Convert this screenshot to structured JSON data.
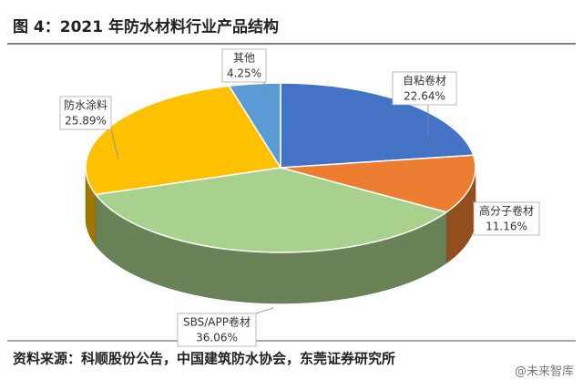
{
  "chart_data": {
    "type": "pie3d",
    "title": "图 4：2021 年防水材料行业产品结构",
    "categories": [
      "自粘卷材",
      "高分子卷材",
      "SBS/APP卷材",
      "防水涂料",
      "其他"
    ],
    "values": [
      22.64,
      11.16,
      36.06,
      25.89,
      4.25
    ],
    "value_labels": [
      "22.64%",
      "11.16%",
      "36.06%",
      "25.89%",
      "4.25%"
    ],
    "colors": [
      "#4472c4",
      "#ed7d31",
      "#a9d18e",
      "#ffc000",
      "#5b9bd5"
    ],
    "source": "资料来源：科顺股份公告，中国建筑防水协会，东莞证券研究所",
    "watermark": "@未来智库"
  }
}
